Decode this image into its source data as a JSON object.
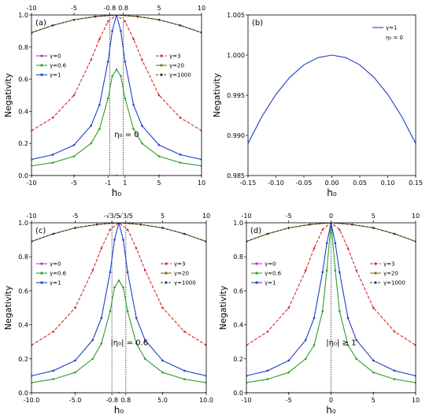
{
  "chart_data": [
    {
      "type": "line",
      "panel_label": "(a)",
      "xlabel": "h₀",
      "ylabel": "Negativity",
      "xlim": [
        -10,
        10
      ],
      "ylim": [
        0,
        1.0
      ],
      "x_ticks": [
        -10,
        -5,
        -1,
        1,
        5,
        10
      ],
      "x_tick_labels": [
        "-10",
        "-5",
        "-1",
        "1",
        "5",
        "10"
      ],
      "y_ticks": [
        0,
        0.2,
        0.4,
        0.6,
        0.8,
        1.0
      ],
      "y_tick_labels": [
        "0.0",
        "0.2",
        "0.4",
        "0.6",
        "0.8",
        "1.0"
      ],
      "top_x_ticks": [
        -10,
        -5,
        -0.8,
        0.8,
        5,
        10
      ],
      "top_x_tick_labels": [
        "-10",
        "-5",
        "-0.8",
        "0.8",
        "5",
        "10"
      ],
      "vlines": [
        -0.8,
        0.8
      ],
      "annotation": "η₀ = 0",
      "legend_left": [
        "γ=0",
        "γ=0.6",
        "γ=1"
      ],
      "legend_right": [
        "γ=3",
        "γ=20",
        "γ=1000"
      ],
      "series": [
        {
          "name": "γ=0",
          "color": "#b03cc8",
          "marker": "circle",
          "dash": "",
          "x": [
            -10,
            -5,
            0,
            5,
            10
          ],
          "y": [
            0,
            0,
            0,
            0,
            0
          ]
        },
        {
          "name": "γ=0.6",
          "color": "#2ca02c",
          "marker": "circle",
          "dash": "",
          "x": [
            -10,
            -7.5,
            -5,
            -3,
            -2,
            -1,
            -0.5,
            0,
            0.5,
            1,
            2,
            3,
            5,
            7.5,
            10
          ],
          "y": [
            0.06,
            0.08,
            0.12,
            0.2,
            0.29,
            0.48,
            0.62,
            0.66,
            0.62,
            0.48,
            0.29,
            0.2,
            0.12,
            0.08,
            0.06
          ]
        },
        {
          "name": "γ=1",
          "color": "#1f3fc8",
          "marker": "circle",
          "dash": "",
          "x": [
            -10,
            -7.5,
            -5,
            -3,
            -2,
            -1,
            -0.5,
            0,
            0.5,
            1,
            2,
            3,
            5,
            7.5,
            10
          ],
          "y": [
            0.1,
            0.13,
            0.19,
            0.31,
            0.44,
            0.71,
            0.9,
            1.0,
            0.9,
            0.71,
            0.44,
            0.31,
            0.19,
            0.13,
            0.1
          ]
        },
        {
          "name": "γ=3",
          "color": "#d62728",
          "marker": "circle",
          "dash": "4,2",
          "x": [
            -10,
            -7.5,
            -5,
            -3,
            -2,
            -1,
            0,
            1,
            2,
            3,
            5,
            7.5,
            10
          ],
          "y": [
            0.28,
            0.36,
            0.5,
            0.72,
            0.85,
            0.96,
            1.0,
            0.96,
            0.85,
            0.72,
            0.5,
            0.36,
            0.28
          ]
        },
        {
          "name": "γ=20",
          "color": "#8b6914",
          "marker": "circle",
          "dash": "",
          "x": [
            -10,
            -7.5,
            -5,
            -2.5,
            0,
            2.5,
            5,
            7.5,
            10
          ],
          "y": [
            0.89,
            0.935,
            0.97,
            0.99,
            1.0,
            0.99,
            0.97,
            0.935,
            0.89
          ]
        },
        {
          "name": "γ=1000",
          "color": "#333333",
          "marker": "circle",
          "dash": "3,2",
          "x": [
            -10,
            -7.5,
            -5,
            -2.5,
            0,
            2.5,
            5,
            7.5,
            10
          ],
          "y": [
            0.89,
            0.935,
            0.97,
            0.99,
            1.0,
            0.99,
            0.97,
            0.935,
            0.89
          ]
        }
      ]
    },
    {
      "type": "line",
      "panel_label": "(b)",
      "xlabel": "h₀",
      "ylabel": "Negativity",
      "xlim": [
        -0.15,
        0.15
      ],
      "ylim": [
        0.985,
        1.005
      ],
      "x_ticks": [
        -0.15,
        -0.1,
        -0.05,
        0,
        0.05,
        0.1,
        0.15
      ],
      "x_tick_labels": [
        "-0.15",
        "-0.10",
        "-0.05",
        "0.00",
        "0.05",
        "0.10",
        "0.15"
      ],
      "y_ticks": [
        0.985,
        0.99,
        0.995,
        1.0,
        1.005
      ],
      "y_tick_labels": [
        "0.985",
        "0.990",
        "0.995",
        "1.000",
        "1.005"
      ],
      "legend": [
        "γ=1"
      ],
      "legend_note": "η₀ = 0",
      "series": [
        {
          "name": "γ=1",
          "color": "#1f3fc8",
          "marker": "none",
          "dash": "",
          "x": [
            -0.15,
            -0.125,
            -0.1,
            -0.075,
            -0.05,
            -0.025,
            0,
            0.025,
            0.05,
            0.075,
            0.1,
            0.125,
            0.15
          ],
          "y": [
            0.989,
            0.99236,
            0.99511,
            0.99725,
            0.99878,
            0.99969,
            1.0,
            0.99969,
            0.99878,
            0.99725,
            0.99511,
            0.99236,
            0.989
          ]
        }
      ]
    },
    {
      "type": "line",
      "panel_label": "(c)",
      "xlabel": "h₀",
      "ylabel": "Negativity",
      "xlim": [
        -10,
        10
      ],
      "ylim": [
        0,
        1.0
      ],
      "x_ticks": [
        -10,
        -5,
        -0.8,
        0.8,
        5,
        10
      ],
      "x_tick_labels": [
        "-10.0",
        "-5.0",
        "-0.8",
        "0.8",
        "5.0",
        "10.0"
      ],
      "y_ticks": [
        0,
        0.2,
        0.4,
        0.6,
        0.8,
        1.0
      ],
      "y_tick_labels": [
        "0.0",
        "0.2",
        "0.4",
        "0.6",
        "0.8",
        "1.0"
      ],
      "top_x_ticks": [
        -10,
        -5,
        -0.8,
        0.8,
        5,
        10
      ],
      "top_x_tick_labels": [
        "-10",
        "-5",
        "-√3/5",
        "√3/5",
        "5",
        "10"
      ],
      "vlines": [
        -0.8,
        0.8
      ],
      "annotation": "|η₀| = 0.6",
      "legend_left": [
        "γ=0",
        "γ=0.6",
        "γ=1"
      ],
      "legend_right": [
        "γ=3",
        "γ=20",
        "γ=1000"
      ],
      "series": [
        {
          "name": "γ=0",
          "color": "#b03cc8",
          "marker": "circle",
          "dash": "",
          "x": [
            -10,
            -5,
            0,
            5,
            10
          ],
          "y": [
            0,
            0,
            0,
            0,
            0
          ]
        },
        {
          "name": "γ=0.6",
          "color": "#2ca02c",
          "marker": "circle",
          "dash": "",
          "x": [
            -10,
            -7.5,
            -5,
            -3,
            -2,
            -1,
            -0.5,
            0,
            0.5,
            1,
            2,
            3,
            5,
            7.5,
            10
          ],
          "y": [
            0.06,
            0.08,
            0.12,
            0.2,
            0.29,
            0.48,
            0.62,
            0.66,
            0.62,
            0.48,
            0.29,
            0.2,
            0.12,
            0.08,
            0.06
          ]
        },
        {
          "name": "γ=1",
          "color": "#1f3fc8",
          "marker": "circle",
          "dash": "",
          "x": [
            -10,
            -7.5,
            -5,
            -3,
            -2,
            -1,
            -0.5,
            0,
            0.5,
            1,
            2,
            3,
            5,
            7.5,
            10
          ],
          "y": [
            0.1,
            0.13,
            0.19,
            0.31,
            0.44,
            0.71,
            0.9,
            1.0,
            0.9,
            0.71,
            0.44,
            0.31,
            0.19,
            0.13,
            0.1
          ]
        },
        {
          "name": "γ=3",
          "color": "#d62728",
          "marker": "circle",
          "dash": "4,2",
          "x": [
            -10,
            -7.5,
            -5,
            -3,
            -2,
            -1,
            0,
            1,
            2,
            3,
            5,
            7.5,
            10
          ],
          "y": [
            0.28,
            0.36,
            0.5,
            0.72,
            0.85,
            0.96,
            1.0,
            0.96,
            0.85,
            0.72,
            0.5,
            0.36,
            0.28
          ]
        },
        {
          "name": "γ=20",
          "color": "#8b6914",
          "marker": "circle",
          "dash": "",
          "x": [
            -10,
            -7.5,
            -5,
            -2.5,
            0,
            2.5,
            5,
            7.5,
            10
          ],
          "y": [
            0.89,
            0.935,
            0.97,
            0.99,
            1.0,
            0.99,
            0.97,
            0.935,
            0.89
          ]
        },
        {
          "name": "γ=1000",
          "color": "#333333",
          "marker": "circle",
          "dash": "3,2",
          "x": [
            -10,
            -7.5,
            -5,
            -2.5,
            0,
            2.5,
            5,
            7.5,
            10
          ],
          "y": [
            0.89,
            0.935,
            0.97,
            0.99,
            1.0,
            0.99,
            0.97,
            0.935,
            0.89
          ]
        }
      ]
    },
    {
      "type": "line",
      "panel_label": "(d)",
      "xlabel": "h₀",
      "ylabel": "Negativity",
      "xlim": [
        -10,
        10
      ],
      "ylim": [
        0,
        1.0
      ],
      "x_ticks": [
        -10,
        -5,
        0,
        5,
        10
      ],
      "x_tick_labels": [
        "-10",
        "-5",
        "0",
        "5",
        "10"
      ],
      "y_ticks": [
        0,
        0.2,
        0.4,
        0.6,
        0.8,
        1.0
      ],
      "y_tick_labels": [
        "0.0",
        "0.2",
        "0.4",
        "0.6",
        "0.8",
        "1.0"
      ],
      "top_x_ticks": [
        -10,
        -5,
        0,
        5,
        10
      ],
      "top_x_tick_labels": [
        "-10",
        "-5",
        "0",
        "5",
        "10"
      ],
      "vlines": [
        0
      ],
      "annotation": "|η₀| ≥ 1",
      "legend_left": [
        "γ=0",
        "γ=0.6",
        "γ=1"
      ],
      "legend_right": [
        "γ=3",
        "γ=20",
        "γ=1000"
      ],
      "series": [
        {
          "name": "γ=0",
          "color": "#b03cc8",
          "marker": "circle",
          "dash": "",
          "x": [
            -10,
            -5,
            0,
            5,
            10
          ],
          "y": [
            0,
            0,
            0,
            0,
            0
          ]
        },
        {
          "name": "γ=0.6",
          "color": "#2ca02c",
          "marker": "circle",
          "dash": "",
          "x": [
            -10,
            -7.5,
            -5,
            -3,
            -2,
            -1,
            -0.5,
            0,
            0.5,
            1,
            2,
            3,
            5,
            7.5,
            10
          ],
          "y": [
            0.06,
            0.08,
            0.12,
            0.2,
            0.28,
            0.48,
            0.72,
            1.0,
            0.72,
            0.48,
            0.28,
            0.2,
            0.12,
            0.08,
            0.06
          ]
        },
        {
          "name": "γ=1",
          "color": "#1f3fc8",
          "marker": "circle",
          "dash": "",
          "x": [
            -10,
            -7.5,
            -5,
            -3,
            -2,
            -1,
            -0.5,
            0,
            0.5,
            1,
            2,
            3,
            5,
            7.5,
            10
          ],
          "y": [
            0.1,
            0.13,
            0.19,
            0.31,
            0.44,
            0.71,
            0.88,
            1.0,
            0.88,
            0.71,
            0.44,
            0.31,
            0.19,
            0.13,
            0.1
          ]
        },
        {
          "name": "γ=3",
          "color": "#d62728",
          "marker": "circle",
          "dash": "4,2",
          "x": [
            -10,
            -7.5,
            -5,
            -3,
            -2,
            -1,
            0,
            1,
            2,
            3,
            5,
            7.5,
            10
          ],
          "y": [
            0.28,
            0.36,
            0.5,
            0.72,
            0.85,
            0.96,
            1.0,
            0.96,
            0.85,
            0.72,
            0.5,
            0.36,
            0.28
          ]
        },
        {
          "name": "γ=20",
          "color": "#8b6914",
          "marker": "circle",
          "dash": "",
          "x": [
            -10,
            -7.5,
            -5,
            -2.5,
            0,
            2.5,
            5,
            7.5,
            10
          ],
          "y": [
            0.89,
            0.935,
            0.97,
            0.99,
            1.0,
            0.99,
            0.97,
            0.935,
            0.89
          ]
        },
        {
          "name": "γ=1000",
          "color": "#333333",
          "marker": "circle",
          "dash": "3,2",
          "x": [
            -10,
            -7.5,
            -5,
            -2.5,
            0,
            2.5,
            5,
            7.5,
            10
          ],
          "y": [
            0.89,
            0.935,
            0.97,
            0.99,
            1.0,
            0.99,
            0.97,
            0.935,
            0.89
          ]
        }
      ]
    }
  ]
}
